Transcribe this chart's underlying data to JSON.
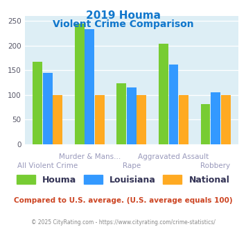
{
  "title_line1": "2019 Houma",
  "title_line2": "Violent Crime Comparison",
  "categories": [
    "All Violent Crime",
    "Murder & Mans...",
    "Rape",
    "Aggravated Assault",
    "Robbery"
  ],
  "series": {
    "Houma": [
      167,
      245,
      124,
      204,
      82
    ],
    "Louisiana": [
      145,
      233,
      115,
      161,
      106
    ],
    "National": [
      100,
      100,
      100,
      100,
      100
    ]
  },
  "colors": {
    "Houma": "#77cc33",
    "Louisiana": "#3399ff",
    "National": "#ffaa22"
  },
  "ylim": [
    0,
    260
  ],
  "yticks": [
    0,
    50,
    100,
    150,
    200,
    250
  ],
  "background_color": "#ddeef5",
  "title_color": "#1177cc",
  "xlabel_color": "#9999bb",
  "xlabel_fontsize": 7.5,
  "footer_text": "Compared to U.S. average. (U.S. average equals 100)",
  "footer_color": "#cc4422",
  "credit_text": "© 2025 CityRating.com - https://www.cityrating.com/crime-statistics/",
  "credit_color": "#888888",
  "legend_label_color": "#333355"
}
